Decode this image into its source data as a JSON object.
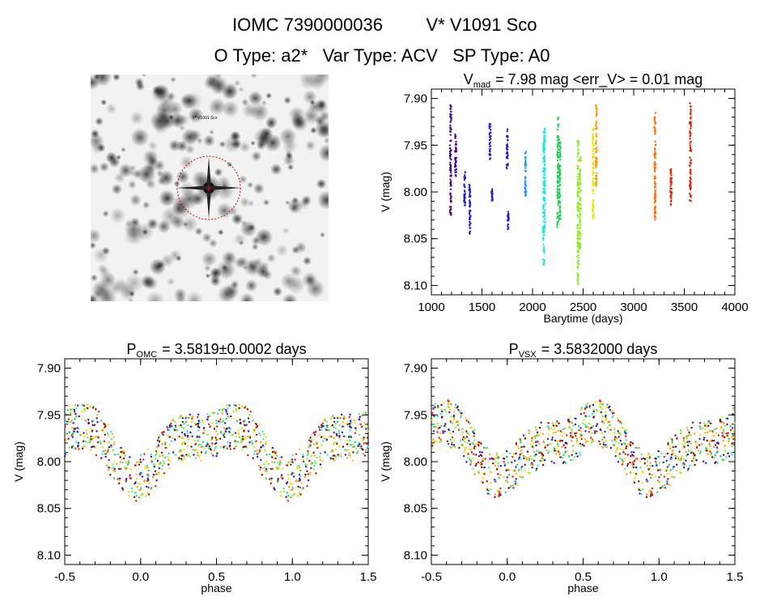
{
  "header": {
    "line1_id": "IOMC 7390000036",
    "line1_name": "V* V1091 Sco",
    "line2": "O Type: a2*   Var Type: ACV   SP Type: A0"
  },
  "finder_image": {
    "labels": [
      "V* V1091 Sco"
    ]
  },
  "colors": {
    "purple": "#4b0082",
    "blue": "#1e1ecc",
    "cyan": "#22e6e6",
    "green": "#22cc55",
    "lime": "#88ee22",
    "yellow": "#e6e600",
    "orange": "#ff9900",
    "red": "#dd2200"
  },
  "chart_data": [
    {
      "type": "scatter",
      "title_main": "V",
      "title_sub": "mad",
      "title_rest": "= 7.98 mag <err_V> = 0.01 mag",
      "xlabel": "Barytime (days)",
      "ylabel": "V (mag)",
      "xlim": [
        1000,
        4000
      ],
      "ylim": [
        8.11,
        7.89
      ],
      "y_inverted": true,
      "xticks": [
        1000,
        1500,
        2000,
        2500,
        3000,
        3500,
        4000
      ],
      "yticks": [
        "7.90",
        "7.95",
        "8.00",
        "8.05",
        "8.10"
      ],
      "groups": [
        {
          "x": 1190,
          "y_min": 7.905,
          "y_max": 8.025,
          "color": "#4b0082"
        },
        {
          "x": 1240,
          "y_min": 7.935,
          "y_max": 7.985,
          "color": "#4b0082"
        },
        {
          "x": 1330,
          "y_min": 7.975,
          "y_max": 8.015,
          "color": "#1e1ecc"
        },
        {
          "x": 1380,
          "y_min": 7.99,
          "y_max": 8.045,
          "color": "#1e1ecc"
        },
        {
          "x": 1580,
          "y_min": 7.925,
          "y_max": 7.965,
          "color": "#1e1ecc"
        },
        {
          "x": 1600,
          "y_min": 7.995,
          "y_max": 8.01,
          "color": "#1e1ecc"
        },
        {
          "x": 1750,
          "y_min": 7.93,
          "y_max": 7.975,
          "color": "#1e1ecc"
        },
        {
          "x": 1760,
          "y_min": 8.02,
          "y_max": 8.04,
          "color": "#1e1ecc"
        },
        {
          "x": 1930,
          "y_min": 7.955,
          "y_max": 8.005,
          "color": "#1e90ff"
        },
        {
          "x": 2110,
          "y_min": 7.935,
          "y_max": 8.08,
          "color": "#22e6e6"
        },
        {
          "x": 2120,
          "y_min": 7.93,
          "y_max": 8.04,
          "color": "#22e6e6"
        },
        {
          "x": 2250,
          "y_min": 7.92,
          "y_max": 8.04,
          "color": "#22cc55"
        },
        {
          "x": 2270,
          "y_min": 7.94,
          "y_max": 8.03,
          "color": "#22cc55"
        },
        {
          "x": 2450,
          "y_min": 7.945,
          "y_max": 8.1,
          "color": "#88ee22"
        },
        {
          "x": 2470,
          "y_min": 7.96,
          "y_max": 8.06,
          "color": "#88ee22"
        },
        {
          "x": 2600,
          "y_min": 7.93,
          "y_max": 8.03,
          "color": "#e6e600"
        },
        {
          "x": 2630,
          "y_min": 7.905,
          "y_max": 7.995,
          "color": "#ff9900"
        },
        {
          "x": 3210,
          "y_min": 7.915,
          "y_max": 8.03,
          "color": "#ff6600"
        },
        {
          "x": 3370,
          "y_min": 7.975,
          "y_max": 8.015,
          "color": "#dd2200"
        },
        {
          "x": 3560,
          "y_min": 7.905,
          "y_max": 8.01,
          "color": "#dd2200"
        }
      ]
    },
    {
      "type": "scatter",
      "title_main": "P",
      "title_sub": "OMC",
      "title_rest": "= 3.5819±0.0002 days",
      "xlabel": "phase",
      "ylabel": "V (mag)",
      "xlim": [
        -0.5,
        1.5
      ],
      "ylim": [
        8.11,
        7.89
      ],
      "y_inverted": true,
      "xticks": [
        "-0.5",
        "0.0",
        "0.5",
        "1.0",
        "1.5"
      ],
      "yticks": [
        "7.90",
        "7.95",
        "8.00",
        "8.05",
        "8.10"
      ],
      "light_curve": {
        "mean": 7.985,
        "amplitude": 0.03,
        "max_phase": 0.7,
        "min_phase": 0.0,
        "scatter": 0.025
      }
    },
    {
      "type": "scatter",
      "title_main": "P",
      "title_sub": "VSX",
      "title_rest": "= 3.5832000 days",
      "xlabel": "phase",
      "ylabel": "V (mag)",
      "xlim": [
        -0.5,
        1.5
      ],
      "ylim": [
        8.11,
        7.89
      ],
      "y_inverted": true,
      "xticks": [
        "-0.5",
        "0.0",
        "0.5",
        "1.0",
        "1.5"
      ],
      "yticks": [
        "7.90",
        "7.95",
        "8.00",
        "8.05",
        "8.10"
      ],
      "light_curve": {
        "mean": 7.985,
        "amplitude": 0.028,
        "max_phase": 0.65,
        "min_phase": 0.0,
        "scatter": 0.025
      }
    }
  ]
}
